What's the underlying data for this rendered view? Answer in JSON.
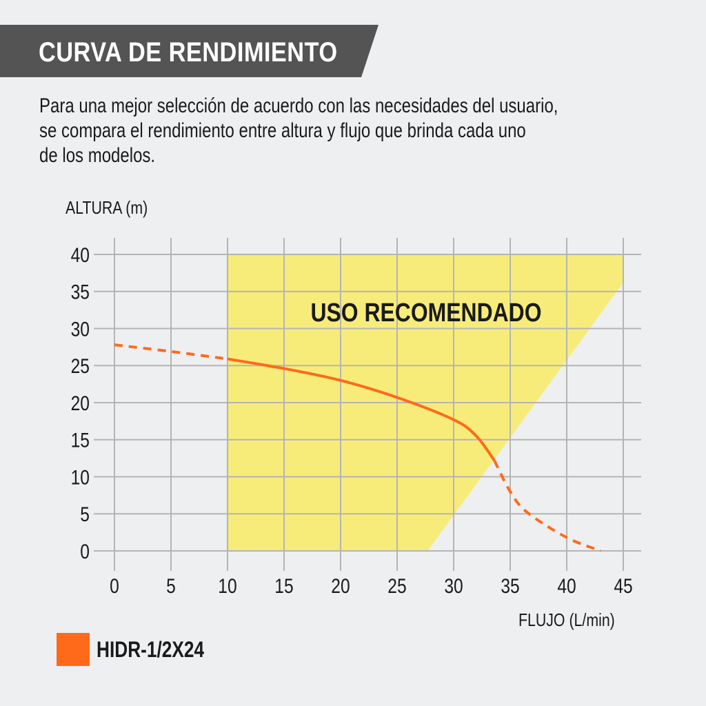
{
  "header": {
    "title": "CURVA DE RENDIMIENTO"
  },
  "description": {
    "lines": [
      "Para una mejor selección de acuerdo con las necesidades del usuario,",
      "se compara el rendimiento entre altura y flujo que brinda cada uno",
      "de los modelos."
    ]
  },
  "colors": {
    "background": "#eeeff1",
    "banner": "#545454",
    "grid": "#b4b4b4",
    "recommended_zone": "#f7ec7a",
    "curve": "#ff6a1a"
  },
  "legend": {
    "items": [
      {
        "label": "HIDR-1/2X24",
        "color": "#ff6a1a"
      }
    ]
  },
  "chart_data": {
    "type": "line",
    "title": "CURVA DE RENDIMIENTO",
    "xlabel": "FLUJO (L/min)",
    "ylabel": "ALTURA (m)",
    "xlim": [
      0,
      45
    ],
    "ylim": [
      0,
      40
    ],
    "x_ticks": [
      0,
      5,
      10,
      15,
      20,
      25,
      30,
      35,
      40,
      45
    ],
    "y_ticks": [
      0,
      5,
      10,
      15,
      20,
      25,
      30,
      35,
      40
    ],
    "grid": true,
    "legend_position": "bottom-left",
    "series": [
      {
        "name": "HIDR-1/2X24",
        "color": "#ff6a1a",
        "x": [
          0,
          5,
          10,
          15,
          20,
          25,
          30,
          32,
          33.6,
          35,
          36.5,
          40,
          43
        ],
        "y": [
          27.8,
          26.9,
          25.9,
          24.6,
          23.0,
          20.7,
          17.7,
          15.5,
          12.2,
          8.0,
          5.2,
          1.8,
          0
        ],
        "segments": [
          {
            "style": "dashed",
            "x": [
              0,
              5,
              10
            ],
            "y": [
              27.8,
              26.9,
              25.9
            ]
          },
          {
            "style": "solid",
            "x": [
              10,
              15,
              20,
              25,
              30,
              32,
              33.6
            ],
            "y": [
              25.9,
              24.6,
              23.0,
              20.7,
              17.7,
              15.5,
              12.2
            ]
          },
          {
            "style": "dashed",
            "x": [
              33.6,
              35,
              36.5,
              40,
              43
            ],
            "y": [
              12.2,
              8.0,
              5.2,
              1.8,
              0
            ]
          }
        ]
      }
    ],
    "annotations": [
      {
        "type": "region",
        "label": "USO RECOMENDADO",
        "color": "#f7ec7a",
        "polygon": [
          [
            10,
            0
          ],
          [
            10,
            40
          ],
          [
            45,
            40
          ],
          [
            45,
            36.2
          ],
          [
            27.7,
            0
          ]
        ]
      }
    ]
  }
}
